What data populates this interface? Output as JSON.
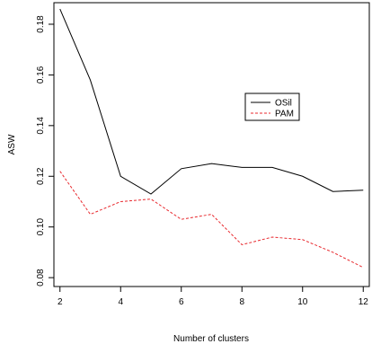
{
  "chart_data": {
    "type": "line",
    "title": "",
    "xlabel": "Number of clusters",
    "ylabel": "ASW",
    "xlim": [
      1.8,
      12.2
    ],
    "ylim": [
      0.0765,
      0.1885
    ],
    "x_ticks": [
      2,
      4,
      6,
      8,
      10,
      12
    ],
    "y_ticks": [
      0.08,
      0.1,
      0.12,
      0.14,
      0.16,
      0.18
    ],
    "y_tick_labels": [
      "0.08",
      "0.10",
      "0.12",
      "0.14",
      "0.16",
      "0.18"
    ],
    "grid": false,
    "legend_position": "right",
    "x": [
      2,
      3,
      4,
      5,
      6,
      7,
      8,
      9,
      10,
      11,
      12
    ],
    "series": [
      {
        "name": "OSil",
        "color": "#000000",
        "line_style": "solid",
        "values": [
          0.186,
          0.158,
          0.12,
          0.113,
          0.123,
          0.125,
          0.1235,
          0.1235,
          0.12,
          0.114,
          0.1145
        ]
      },
      {
        "name": "PAM",
        "color": "#e8292e",
        "line_style": "dashed",
        "values": [
          0.122,
          0.105,
          0.11,
          0.111,
          0.103,
          0.105,
          0.093,
          0.096,
          0.095,
          0.09,
          0.084
        ]
      }
    ]
  }
}
